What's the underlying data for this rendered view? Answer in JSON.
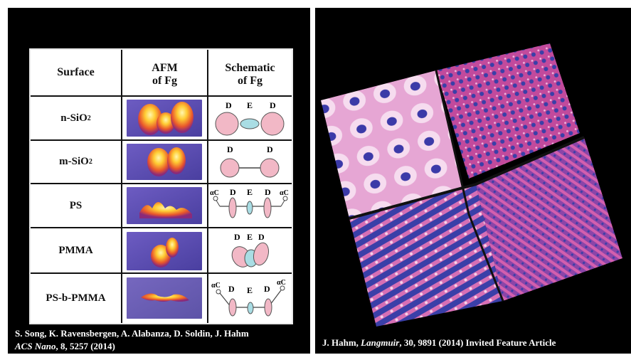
{
  "table": {
    "headers": {
      "surface": "Surface",
      "afm_line1": "AFM",
      "afm_line2": "of Fg",
      "schem_line1": "Schematic",
      "schem_line2": "of Fg"
    },
    "rows": [
      {
        "surface": "n-SiO",
        "sub": "2",
        "labels": [
          "D",
          "E",
          "D"
        ]
      },
      {
        "surface": "m-SiO",
        "sub": "2",
        "labels": [
          "D",
          "D"
        ]
      },
      {
        "surface": "PS",
        "sub": "",
        "labels": [
          "αC",
          "D",
          "E",
          "D",
          "αC"
        ]
      },
      {
        "surface": "PMMA",
        "sub": "",
        "labels": [
          "D",
          "E",
          "D"
        ]
      },
      {
        "surface": "PS-b-PMMA",
        "sub": "",
        "labels": [
          "αC",
          "D",
          "E",
          "D",
          "αC"
        ]
      }
    ]
  },
  "captions": {
    "left_line1": "S. Song, K. Ravensbergen, A. Alabanza, D. Soldin, J. Hahm",
    "left_line2_journal": "ACS Nano",
    "left_line2_rest": ", 8, 5257 (2014)",
    "right_prefix": "J. Hahm, ",
    "right_journal": "Langmuir",
    "right_rest": ", 30, 9891 (2014) Invited Feature Article"
  },
  "colors": {
    "background": "#000000",
    "afm_bg": "#5b4fb0",
    "afm_peak": "#ffcc33",
    "domain_pink": "#f2b8c6",
    "e_domain": "#a9dde4",
    "surface_magenta": "#c24a9c",
    "surface_blue": "#3a3fa8"
  }
}
